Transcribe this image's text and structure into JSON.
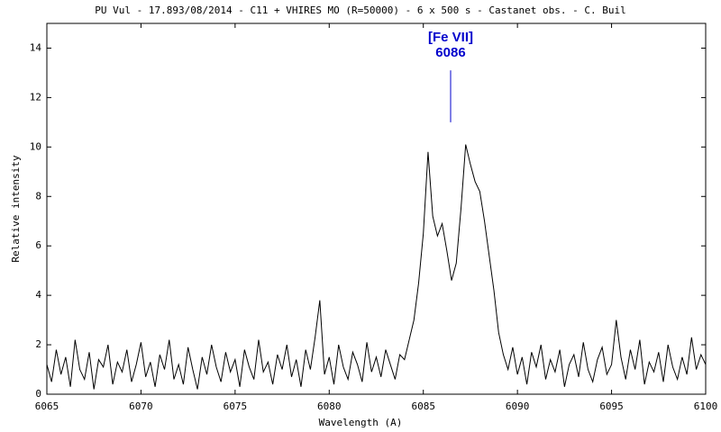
{
  "chart_data": {
    "type": "line",
    "title": "PU Vul - 17.893/08/2014 - C11 + VHIRES MO (R=50000) - 6 x 500 s - Castanet obs. - C. Buil",
    "xlabel": "Wavelength (A)",
    "ylabel": "Relative intensity",
    "xlim": [
      6065,
      6100
    ],
    "ylim": [
      0,
      15
    ],
    "xticks": [
      6065,
      6070,
      6075,
      6080,
      6085,
      6090,
      6095,
      6100
    ],
    "yticks": [
      0,
      2,
      4,
      6,
      8,
      10,
      12,
      14
    ],
    "annotation": {
      "lines": [
        "[Fe VII]",
        "6086"
      ],
      "color": "#0000cc",
      "x": 6086.45,
      "y_from": 11,
      "y_to": 13.1
    },
    "x": [
      6065,
      6065.25,
      6065.5,
      6065.75,
      6066,
      6066.25,
      6066.5,
      6066.75,
      6067,
      6067.25,
      6067.5,
      6067.75,
      6068,
      6068.25,
      6068.5,
      6068.75,
      6069,
      6069.25,
      6069.5,
      6069.75,
      6070,
      6070.25,
      6070.5,
      6070.75,
      6071,
      6071.25,
      6071.5,
      6071.75,
      6072,
      6072.25,
      6072.5,
      6072.75,
      6073,
      6073.25,
      6073.5,
      6073.75,
      6074,
      6074.25,
      6074.5,
      6074.75,
      6075,
      6075.25,
      6075.5,
      6075.75,
      6076,
      6076.25,
      6076.5,
      6076.75,
      6077,
      6077.25,
      6077.5,
      6077.75,
      6078,
      6078.25,
      6078.5,
      6078.75,
      6079,
      6079.25,
      6079.5,
      6079.75,
      6080,
      6080.25,
      6080.5,
      6080.75,
      6081,
      6081.25,
      6081.5,
      6081.75,
      6082,
      6082.25,
      6082.5,
      6082.75,
      6083,
      6083.25,
      6083.5,
      6083.75,
      6084,
      6084.25,
      6084.5,
      6084.75,
      6085,
      6085.25,
      6085.5,
      6085.75,
      6086,
      6086.25,
      6086.5,
      6086.75,
      6087,
      6087.25,
      6087.5,
      6087.75,
      6088,
      6088.25,
      6088.5,
      6088.75,
      6089,
      6089.25,
      6089.5,
      6089.75,
      6090,
      6090.25,
      6090.5,
      6090.75,
      6091,
      6091.25,
      6091.5,
      6091.75,
      6092,
      6092.25,
      6092.5,
      6092.75,
      6093,
      6093.25,
      6093.5,
      6093.75,
      6094,
      6094.25,
      6094.5,
      6094.75,
      6095,
      6095.25,
      6095.5,
      6095.75,
      6096,
      6096.25,
      6096.5,
      6096.75,
      6097,
      6097.25,
      6097.5,
      6097.75,
      6098,
      6098.25,
      6098.5,
      6098.75,
      6099,
      6099.25,
      6099.5,
      6099.75,
      6100
    ],
    "series": [
      {
        "color": "#000000",
        "values": [
          1.2,
          0.5,
          1.8,
          0.8,
          1.5,
          0.3,
          2.2,
          1.0,
          0.6,
          1.7,
          0.2,
          1.4,
          1.1,
          2.0,
          0.4,
          1.3,
          0.9,
          1.8,
          0.5,
          1.2,
          2.1,
          0.7,
          1.3,
          0.3,
          1.6,
          1.0,
          2.2,
          0.6,
          1.2,
          0.4,
          1.9,
          1.0,
          0.2,
          1.5,
          0.8,
          2.0,
          1.1,
          0.5,
          1.7,
          0.9,
          1.4,
          0.3,
          1.8,
          1.1,
          0.6,
          2.2,
          0.9,
          1.3,
          0.4,
          1.6,
          1.0,
          2.0,
          0.7,
          1.4,
          0.3,
          1.8,
          1.0,
          2.3,
          3.8,
          0.8,
          1.5,
          0.4,
          2.0,
          1.1,
          0.6,
          1.7,
          1.2,
          0.5,
          2.1,
          0.9,
          1.5,
          0.7,
          1.8,
          1.2,
          0.6,
          1.6,
          1.4,
          2.2,
          3.0,
          4.5,
          6.5,
          9.8,
          7.2,
          6.4,
          6.9,
          5.8,
          4.6,
          5.3,
          7.5,
          10.1,
          9.3,
          8.6,
          8.2,
          7.0,
          5.6,
          4.2,
          2.5,
          1.6,
          1.0,
          1.9,
          0.8,
          1.5,
          0.4,
          1.7,
          1.1,
          2.0,
          0.6,
          1.4,
          0.9,
          1.8,
          0.3,
          1.2,
          1.6,
          0.7,
          2.1,
          1.0,
          0.5,
          1.4,
          1.9,
          0.8,
          1.2,
          3.0,
          1.5,
          0.6,
          1.8,
          1.0,
          2.2,
          0.4,
          1.3,
          0.9,
          1.7,
          0.5,
          2.0,
          1.1,
          0.6,
          1.5,
          0.8,
          2.3,
          1.0,
          1.6,
          1.2
        ]
      }
    ]
  }
}
